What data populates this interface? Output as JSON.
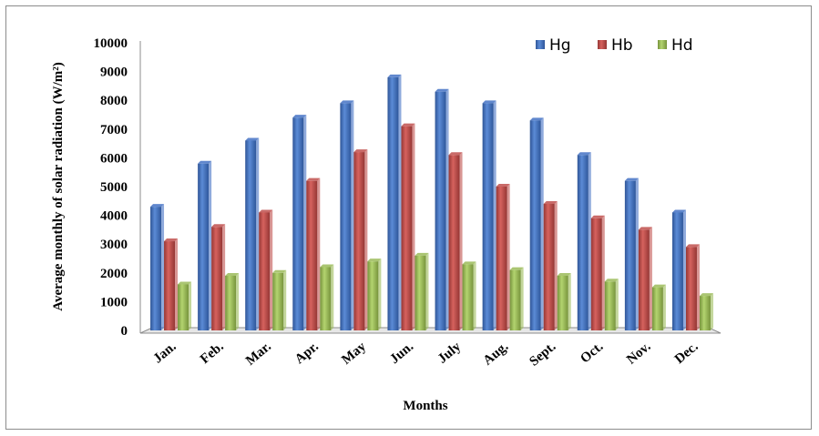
{
  "chart_data": {
    "type": "bar",
    "categories": [
      "Jan.",
      "Feb.",
      "Mar.",
      "Apr.",
      "May",
      "Jun.",
      "July",
      "Aug.",
      "Sept.",
      "Oct.",
      "Nov.",
      "Dec."
    ],
    "series": [
      {
        "name": "Hg",
        "color": "#4472C4",
        "values": [
          4300,
          5800,
          6600,
          7400,
          7900,
          8800,
          8300,
          7900,
          7300,
          6100,
          5200,
          4100
        ]
      },
      {
        "name": "Hb",
        "color": "#C0504D",
        "values": [
          3100,
          3600,
          4100,
          5200,
          6200,
          7100,
          6100,
          5000,
          4400,
          3900,
          3500,
          2900
        ]
      },
      {
        "name": "Hd",
        "color": "#9BBB59",
        "values": [
          1600,
          1900,
          2000,
          2200,
          2400,
          2600,
          2300,
          2100,
          1900,
          1700,
          1500,
          1200
        ]
      }
    ],
    "title": "",
    "xlabel": "Months",
    "ylabel": "Average monthly of solar radiation (W/m²)",
    "ylim": [
      0,
      10000
    ],
    "yticks": [
      "0",
      "1000",
      "2000",
      "3000",
      "4000",
      "5000",
      "6000",
      "7000",
      "8000",
      "9000",
      "10000"
    ],
    "grid": false,
    "legend_position": "top-right"
  }
}
